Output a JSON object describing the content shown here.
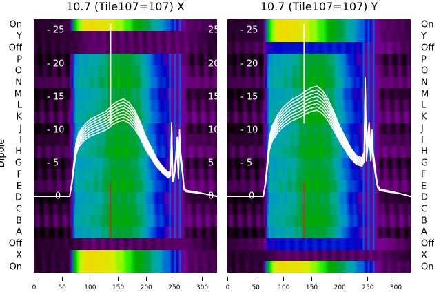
{
  "chart_data": [
    {
      "type": "heatmap",
      "title": "10.7 (Tile107=107) X",
      "ylabel": "Dipole",
      "row_labels": [
        "On",
        "Y",
        "Off",
        "P",
        "O",
        "N",
        "M",
        "L",
        "K",
        "J",
        "I",
        "H",
        "G",
        "F",
        "E",
        "D",
        "C",
        "B",
        "A",
        "Off",
        "X",
        "On"
      ],
      "row_kind": [
        "on",
        "off",
        "off",
        "dip",
        "dip",
        "dip",
        "dip",
        "dip",
        "dip",
        "dip",
        "dip",
        "dip",
        "dip",
        "dip",
        "dip",
        "dip",
        "dip",
        "dip",
        "dip",
        "off",
        "on",
        "on"
      ],
      "xticks": [
        0,
        50,
        100,
        150,
        200,
        250,
        300
      ],
      "xlim": [
        0,
        327
      ],
      "overlay_yticks": [
        0,
        5,
        10,
        15,
        20,
        25
      ],
      "overlay_ylim": [
        -11.5,
        26.7
      ],
      "colormap": "nipy_spectral",
      "overlay_curve": {
        "x": [
          0,
          64,
          68,
          75,
          80,
          90,
          100,
          115,
          130,
          137,
          140,
          150,
          160,
          170,
          180,
          190,
          200,
          210,
          220,
          230,
          240,
          244,
          246,
          248,
          250,
          253,
          256,
          258,
          260,
          262,
          265,
          268,
          272,
          290,
          305,
          327
        ],
        "y": [
          0,
          0,
          2,
          7,
          8.5,
          9.6,
          10.3,
          10.9,
          11.5,
          12,
          12.3,
          12.8,
          13.1,
          12.6,
          11.6,
          10,
          8,
          6.5,
          5,
          4,
          3.2,
          3.5,
          10,
          2.5,
          3,
          5,
          8,
          3,
          9,
          6,
          4,
          1.2,
          0.8,
          0.6,
          0.4,
          0
        ]
      },
      "overlay_spike": {
        "x": 137,
        "y": 26
      }
    },
    {
      "type": "heatmap",
      "title": "10.7 (Tile107=107) Y",
      "row_labels": [
        "On",
        "Y",
        "Off",
        "P",
        "O",
        "N",
        "M",
        "L",
        "K",
        "J",
        "I",
        "H",
        "G",
        "F",
        "E",
        "D",
        "C",
        "B",
        "A",
        "Off",
        "X",
        "On"
      ],
      "row_kind": [
        "on",
        "on",
        "offblue",
        "dip",
        "dip",
        "dip",
        "dip",
        "dip",
        "dip",
        "dip",
        "dip",
        "dip",
        "dip",
        "dip",
        "dip",
        "dip",
        "dip",
        "dip",
        "dip",
        "offblue",
        "off",
        "on"
      ],
      "xticks": [
        0,
        50,
        100,
        150,
        200,
        250,
        300
      ],
      "xlim": [
        0,
        327
      ],
      "overlay_yticks": [
        0,
        5,
        10,
        15,
        20,
        25
      ],
      "overlay_ylim": [
        -11.5,
        26.7
      ],
      "colormap": "nipy_spectral",
      "overlay_curve": {
        "x": [
          0,
          64,
          68,
          75,
          80,
          90,
          100,
          115,
          130,
          137,
          140,
          150,
          160,
          170,
          180,
          190,
          200,
          210,
          220,
          230,
          240,
          244,
          246,
          248,
          250,
          253,
          256,
          258,
          260,
          262,
          265,
          268,
          272,
          290,
          305,
          327
        ],
        "y": [
          0,
          0,
          2,
          8,
          9.5,
          11,
          12,
          13,
          13.6,
          14,
          14.2,
          14.6,
          14.8,
          14.2,
          13,
          11.3,
          9.5,
          8,
          6.5,
          5.5,
          5.2,
          6,
          16,
          6,
          8,
          10,
          6,
          9,
          6,
          5,
          3,
          1.5,
          1,
          0.7,
          0.5,
          0
        ]
      },
      "overlay_spike": {
        "x": 137,
        "y": 26
      }
    }
  ]
}
